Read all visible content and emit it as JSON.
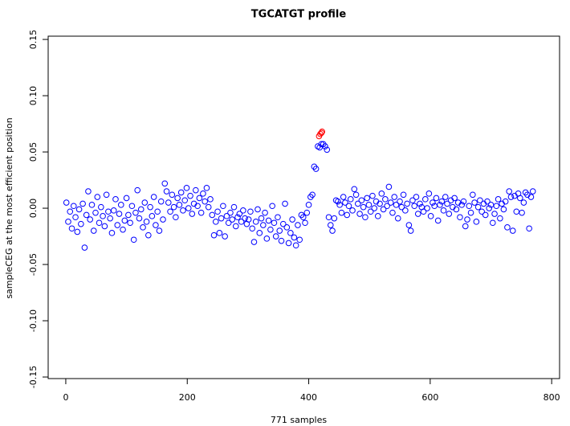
{
  "chart_data": {
    "type": "scatter",
    "title": "TGCATGT profile",
    "xlabel": "771 samples",
    "ylabel": "sampleCEG at the most efficient position",
    "xlim": [
      -29,
      813
    ],
    "ylim": [
      -0.1514,
      0.1529
    ],
    "xticks": [
      0,
      200,
      400,
      600,
      800
    ],
    "yticks": [
      -0.15,
      {
        "value": -0.1,
        "label": "-0.10"
      },
      -0.05,
      {
        "value": 0,
        "label": "0.00"
      },
      0.05,
      {
        "value": 0.1,
        "label": "0.10"
      },
      0.15
    ],
    "series": [
      {
        "color": "#0000ff",
        "x": [
          1,
          4,
          7,
          10,
          13,
          16,
          19,
          22,
          25,
          28,
          31,
          34,
          37,
          40,
          43,
          46,
          49,
          52,
          55,
          58,
          61,
          64,
          67,
          70,
          73,
          76,
          79,
          82,
          85,
          88,
          91,
          94,
          97,
          100,
          103,
          106,
          109,
          112,
          115,
          118,
          121,
          124,
          127,
          130,
          133,
          136,
          139,
          142,
          145,
          148,
          151,
          154,
          157,
          160,
          163,
          166,
          169,
          172,
          175,
          178,
          181,
          184,
          187,
          190,
          193,
          196,
          199,
          202,
          205,
          208,
          211,
          214,
          217,
          220,
          223,
          226,
          229,
          232,
          235,
          238,
          241,
          244,
          247,
          250,
          253,
          256,
          259,
          262,
          265,
          268,
          271,
          274,
          277,
          280,
          283,
          286,
          289,
          292,
          295,
          298,
          301,
          304,
          307,
          310,
          313,
          316,
          319,
          322,
          325,
          328,
          331,
          334,
          337,
          340,
          343,
          346,
          349,
          352,
          355,
          358,
          361,
          364,
          367,
          370,
          373,
          376,
          379,
          382,
          385,
          388,
          391,
          394,
          397,
          400,
          403,
          406,
          409,
          412,
          415,
          418,
          421,
          424,
          427,
          430,
          433,
          436,
          439,
          442,
          445,
          448,
          451,
          454,
          457,
          460,
          463,
          466,
          469,
          472,
          475,
          478,
          481,
          484,
          487,
          490,
          493,
          496,
          499,
          502,
          505,
          508,
          511,
          514,
          517,
          520,
          523,
          526,
          529,
          532,
          535,
          538,
          541,
          544,
          547,
          550,
          553,
          556,
          559,
          562,
          565,
          568,
          571,
          574,
          577,
          580,
          583,
          586,
          589,
          592,
          595,
          598,
          601,
          604,
          607,
          610,
          613,
          616,
          619,
          622,
          625,
          628,
          631,
          634,
          637,
          640,
          643,
          646,
          649,
          652,
          655,
          658,
          661,
          664,
          667,
          670,
          673,
          676,
          679,
          682,
          685,
          688,
          691,
          694,
          697,
          700,
          703,
          706,
          709,
          712,
          715,
          718,
          721,
          724,
          727,
          730,
          733,
          736,
          739,
          742,
          745,
          748,
          751,
          754,
          757,
          760,
          763,
          766,
          769
        ],
        "values": [
          0.005,
          -0.012,
          -0.003,
          -0.018,
          0.002,
          -0.008,
          -0.021,
          -0.001,
          -0.014,
          0.004,
          -0.035,
          -0.006,
          0.015,
          -0.01,
          0.003,
          -0.02,
          -0.004,
          0.01,
          -0.013,
          0.001,
          -0.007,
          -0.016,
          0.012,
          -0.003,
          -0.009,
          -0.022,
          -0.002,
          0.008,
          -0.015,
          -0.005,
          0.003,
          -0.019,
          -0.011,
          0.009,
          -0.006,
          -0.013,
          0.002,
          -0.028,
          -0.004,
          0.016,
          -0.009,
          -0.001,
          -0.017,
          0.005,
          -0.012,
          -0.024,
          0.001,
          -0.007,
          0.01,
          -0.015,
          -0.003,
          -0.02,
          0.006,
          -0.01,
          0.022,
          0.015,
          0.005,
          -0.003,
          0.012,
          0.001,
          -0.008,
          0.009,
          0.003,
          0.014,
          -0.002,
          0.007,
          0.018,
          0.0,
          0.011,
          -0.005,
          0.004,
          0.016,
          0.002,
          0.009,
          -0.004,
          0.013,
          0.006,
          0.018,
          0.001,
          0.008,
          -0.006,
          -0.024,
          -0.012,
          -0.003,
          -0.022,
          -0.009,
          0.002,
          -0.025,
          -0.007,
          -0.013,
          -0.004,
          -0.01,
          0.001,
          -0.016,
          -0.008,
          -0.005,
          -0.012,
          -0.002,
          -0.009,
          -0.014,
          -0.01,
          -0.003,
          -0.018,
          -0.03,
          -0.012,
          -0.001,
          -0.022,
          -0.009,
          -0.015,
          -0.004,
          -0.027,
          -0.011,
          -0.019,
          0.002,
          -0.013,
          -0.025,
          -0.008,
          -0.02,
          -0.029,
          -0.014,
          0.004,
          -0.017,
          -0.031,
          -0.022,
          -0.01,
          -0.026,
          -0.033,
          -0.015,
          -0.028,
          -0.006,
          -0.008,
          -0.013,
          -0.004,
          0.003,
          0.01,
          0.012,
          0.037,
          0.035,
          0.055,
          0.054,
          0.057,
          0.057,
          0.055,
          0.052,
          -0.008,
          -0.015,
          -0.02,
          -0.009,
          0.007,
          0.006,
          0.003,
          -0.004,
          0.01,
          0.005,
          -0.006,
          0.002,
          0.008,
          -0.002,
          0.017,
          0.012,
          0.004,
          -0.005,
          0.007,
          0.001,
          -0.008,
          0.009,
          0.003,
          -0.003,
          0.011,
          0.0,
          0.006,
          -0.007,
          0.004,
          0.013,
          -0.001,
          0.008,
          0.002,
          0.019,
          0.005,
          -0.004,
          0.01,
          0.003,
          -0.009,
          0.006,
          0.001,
          0.012,
          -0.002,
          0.004,
          -0.015,
          -0.02,
          0.007,
          0.002,
          0.01,
          -0.005,
          0.004,
          0.001,
          -0.003,
          0.008,
          0.0,
          0.013,
          -0.007,
          0.005,
          0.002,
          0.009,
          -0.011,
          0.003,
          0.006,
          -0.002,
          0.01,
          0.004,
          -0.005,
          0.007,
          0.001,
          0.009,
          -0.001,
          0.005,
          -0.008,
          0.003,
          0.006,
          -0.016,
          -0.01,
          0.002,
          -0.004,
          0.012,
          0.005,
          -0.012,
          0.001,
          0.007,
          -0.003,
          0.004,
          -0.006,
          0.006,
          0.0,
          0.003,
          -0.013,
          -0.005,
          0.002,
          0.008,
          -0.009,
          0.004,
          -0.001,
          0.006,
          -0.017,
          0.015,
          0.01,
          -0.02,
          0.011,
          -0.003,
          0.013,
          0.009,
          -0.004,
          0.005,
          0.014,
          0.012,
          -0.018,
          0.01,
          0.015
        ]
      },
      {
        "color": "#ff0000",
        "x": [
          417,
          419,
          421,
          422
        ],
        "values": [
          0.064,
          0.066,
          0.067,
          0.068
        ]
      }
    ]
  }
}
